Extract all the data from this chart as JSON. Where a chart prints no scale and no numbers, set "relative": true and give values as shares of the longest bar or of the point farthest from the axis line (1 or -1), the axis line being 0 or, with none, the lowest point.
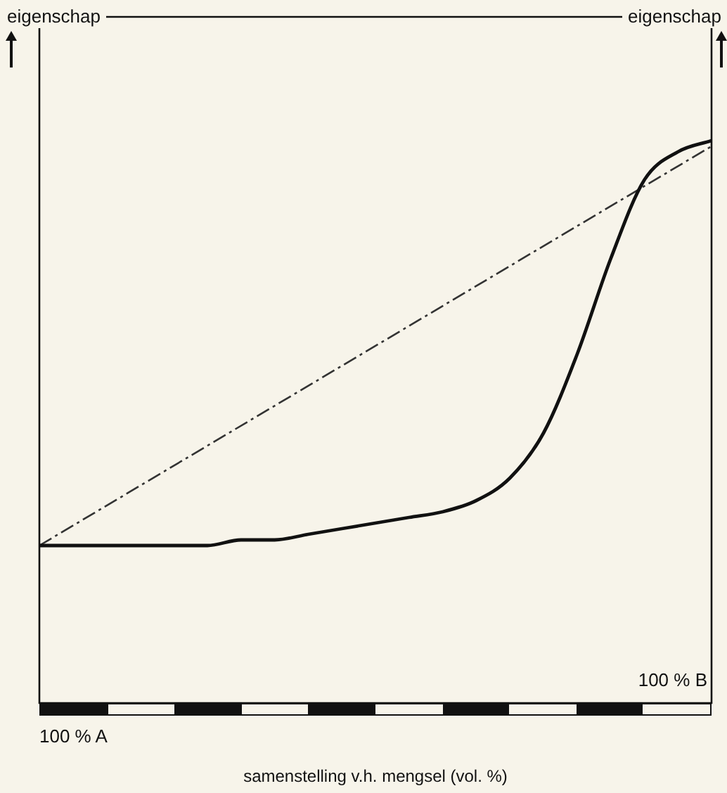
{
  "chart_data": {
    "type": "line",
    "relative": true,
    "xlabel": "samenstelling v.h. mengsel (vol. %)",
    "legend": false,
    "marker": "none",
    "annotations": [
      "eigenschap",
      "eigenschap",
      "100 % A",
      "100 % B"
    ],
    "categories": [
      null,
      null,
      null,
      null,
      null,
      null,
      null,
      null,
      null,
      null,
      null,
      null,
      null,
      null,
      null,
      null,
      null,
      null,
      null,
      null,
      null
    ],
    "series": [
      {
        "color": "#111111",
        "line_style": "solid",
        "values": [
          0.28,
          0.28,
          0.28,
          0.28,
          0.28,
          0.28,
          0.29,
          0.29,
          0.3,
          0.31,
          0.32,
          0.33,
          0.34,
          0.36,
          0.4,
          0.48,
          0.62,
          0.79,
          0.93,
          0.98,
          1
        ]
      },
      {
        "color": "#333333",
        "line_style": "dashed",
        "values": [
          0.28,
          null,
          null,
          null,
          null,
          null,
          null,
          null,
          null,
          null,
          null,
          null,
          null,
          null,
          null,
          null,
          null,
          null,
          null,
          null,
          0.99
        ]
      }
    ]
  }
}
